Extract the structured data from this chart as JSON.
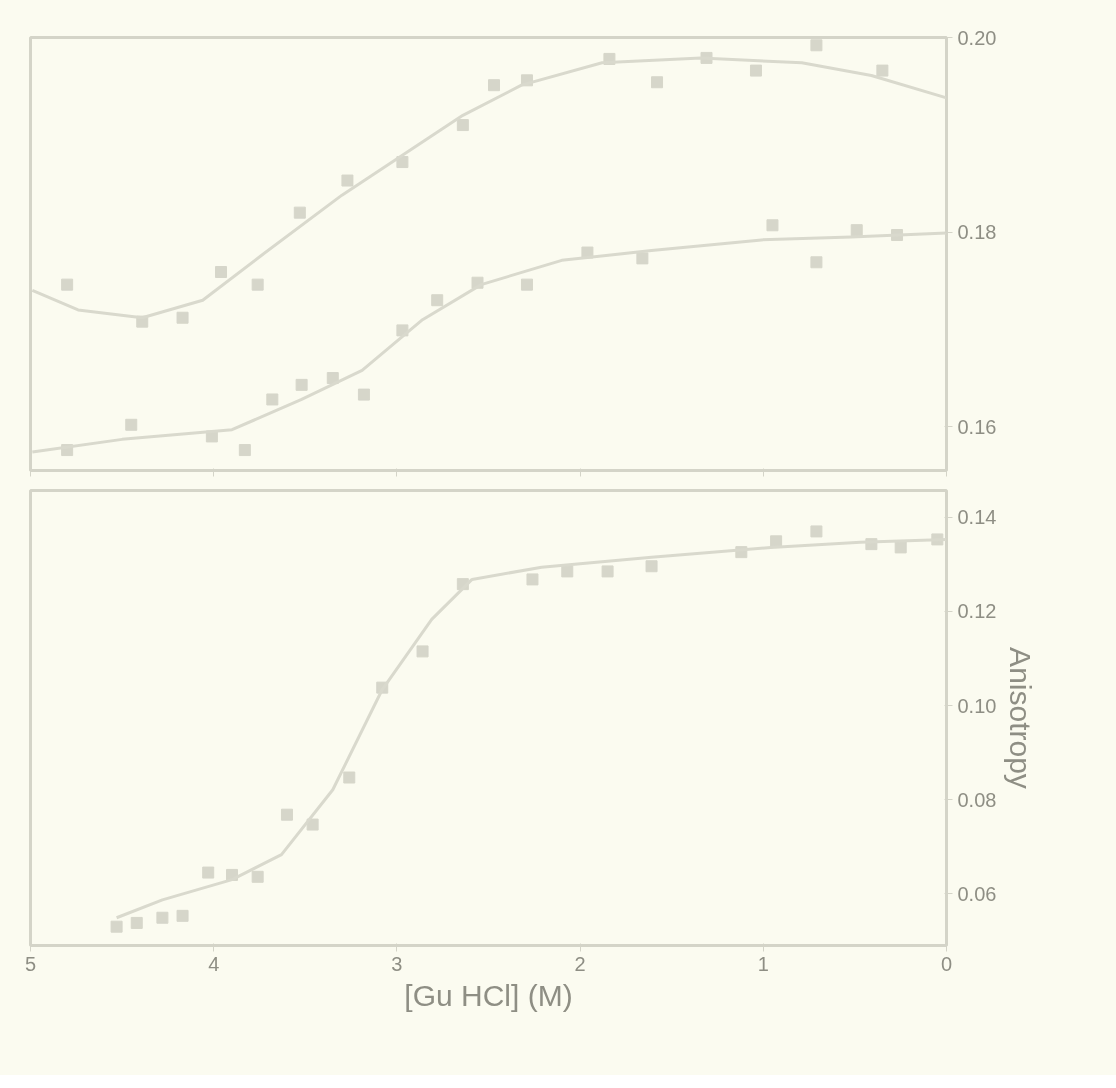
{
  "chart_data": [
    {
      "type": "scatter",
      "marker": "square",
      "xlim": [
        5,
        0
      ],
      "xticks": [
        5,
        4,
        3,
        2,
        1,
        0
      ],
      "ylim": [
        0.1555,
        0.2
      ],
      "yticks": [
        0.16,
        0.18,
        {
          "value": 0.2,
          "label": "0.20"
        }
      ],
      "tick_labels": "y",
      "series": [
        {
          "color": "#d6d6ca",
          "x": [
            4.8,
            4.39,
            4.17,
            3.96,
            3.76,
            3.53,
            3.27,
            2.97,
            2.64,
            2.47,
            2.29,
            1.84,
            1.58,
            1.31,
            1.04,
            0.71,
            0.35
          ],
          "values": [
            0.1746,
            0.1708,
            0.1712,
            0.1759,
            0.1746,
            0.182,
            0.1853,
            0.1872,
            0.191,
            0.1951,
            0.1956,
            0.1978,
            0.1954,
            0.1979,
            0.1966,
            0.1992,
            0.1966
          ]
        },
        {
          "type": "line",
          "marker": "none",
          "color": "#d9d9cd",
          "x": [
            4.99,
            4.74,
            4.39,
            4.06,
            3.74,
            3.3,
            2.97,
            2.64,
            2.32,
            1.88,
            1.34,
            0.79,
            0.41,
            0.0
          ],
          "values": [
            0.174,
            0.172,
            0.1712,
            0.173,
            0.1776,
            0.1838,
            0.1879,
            0.192,
            0.1951,
            0.1974,
            0.1979,
            0.1974,
            0.1961,
            0.1938
          ]
        },
        {
          "color": "#d6d6ca",
          "x": [
            4.8,
            4.45,
            4.01,
            3.83,
            3.68,
            3.52,
            3.35,
            3.18,
            2.97,
            2.78,
            2.56,
            2.29,
            1.96,
            1.66,
            0.95,
            0.71,
            0.49,
            0.27
          ],
          "values": [
            0.1576,
            0.1602,
            0.159,
            0.1576,
            0.1628,
            0.1643,
            0.165,
            0.1633,
            0.1699,
            0.173,
            0.1748,
            0.1746,
            0.1779,
            0.1773,
            0.1807,
            0.1769,
            0.1802,
            0.1797
          ]
        },
        {
          "type": "line",
          "marker": "none",
          "color": "#d9d9cd",
          "x": [
            4.99,
            4.5,
            3.9,
            3.52,
            3.19,
            2.86,
            2.54,
            2.1,
            1.61,
            1.01,
            0.52,
            0.0
          ],
          "values": [
            0.1574,
            0.1587,
            0.1597,
            0.1628,
            0.1658,
            0.171,
            0.1746,
            0.1771,
            0.1781,
            0.1792,
            0.1795,
            0.1799
          ]
        }
      ]
    },
    {
      "type": "scatter",
      "marker": "square",
      "xlim": [
        5,
        0
      ],
      "xticks": [
        5,
        4,
        3,
        2,
        1,
        0
      ],
      "ylim": [
        0.049,
        0.1457
      ],
      "yticks": [
        0.06,
        0.08,
        {
          "value": 0.1,
          "label": "0.10"
        },
        0.12,
        0.14
      ],
      "xlabel": "[Gu HCl] (M)",
      "ylabel": "Anisotropy",
      "series": [
        {
          "color": "#d6d6ca",
          "x": [
            4.53,
            4.42,
            4.28,
            4.17,
            4.03,
            3.9,
            3.76,
            3.6,
            3.46,
            3.26,
            3.08,
            2.86,
            2.64,
            2.26,
            2.07,
            1.85,
            1.61,
            1.12,
            0.93,
            0.71,
            0.41,
            0.25,
            0.05
          ],
          "values": [
            0.053,
            0.0538,
            0.0549,
            0.0553,
            0.0645,
            0.064,
            0.0636,
            0.0768,
            0.0747,
            0.0847,
            0.1038,
            0.1115,
            0.1258,
            0.1268,
            0.1285,
            0.1285,
            0.1296,
            0.1326,
            0.1349,
            0.137,
            0.1343,
            0.1336,
            0.1353
          ]
        },
        {
          "type": "line",
          "marker": "none",
          "color": "#d9d9cd",
          "x": [
            4.53,
            4.28,
            3.9,
            3.63,
            3.35,
            3.08,
            2.81,
            2.59,
            2.21,
            1.61,
            0.96,
            0.47,
            0.0
          ],
          "values": [
            0.0549,
            0.0587,
            0.063,
            0.0683,
            0.0821,
            0.1034,
            0.1183,
            0.1268,
            0.1294,
            0.1315,
            0.1336,
            0.1347,
            0.1353
          ]
        }
      ]
    }
  ]
}
